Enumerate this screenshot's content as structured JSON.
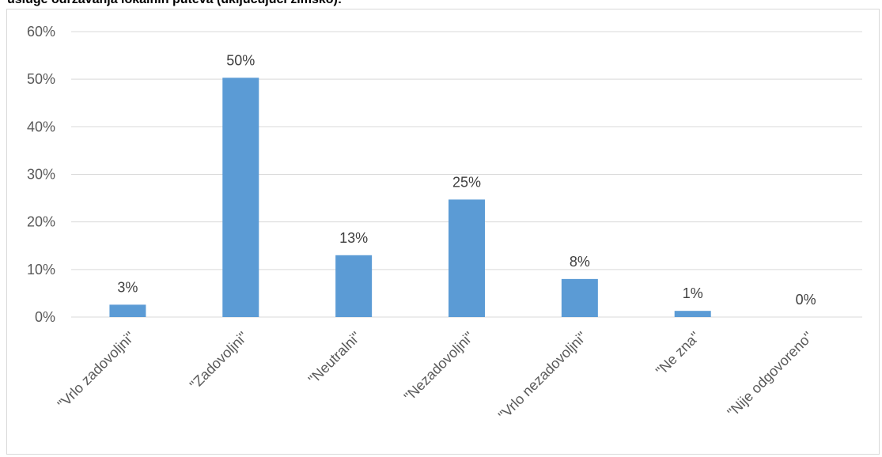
{
  "title": "usluge održavanja lokalnih puteva (uključujući zimsko):",
  "chart_data": {
    "type": "bar",
    "title": "usluge održavanja lokalnih puteva (uključujući zimsko):",
    "categories": [
      "\"Vrlo zadovoljni\"",
      "\"Zadovoljni\"",
      "\"Neutralni\"",
      "\"Nezadovoljni\"",
      "\"Vrlo nezadovoljni\"",
      "\"Ne zna\"",
      "\"Nije odgovoreno\""
    ],
    "values": [
      2.6,
      50.3,
      13.0,
      24.7,
      8.0,
      1.3,
      0.0
    ],
    "value_labels": [
      "3%",
      "50%",
      "13%",
      "25%",
      "8%",
      "1%",
      "0%"
    ],
    "y_ticks": [
      "0%",
      "10%",
      "20%",
      "30%",
      "40%",
      "50%",
      "60%"
    ],
    "ylim": [
      0,
      60
    ],
    "xlabel": "",
    "ylabel": "",
    "grid": true,
    "bar_color": "#5b9bd5",
    "grid_color": "#d9d9d9"
  }
}
